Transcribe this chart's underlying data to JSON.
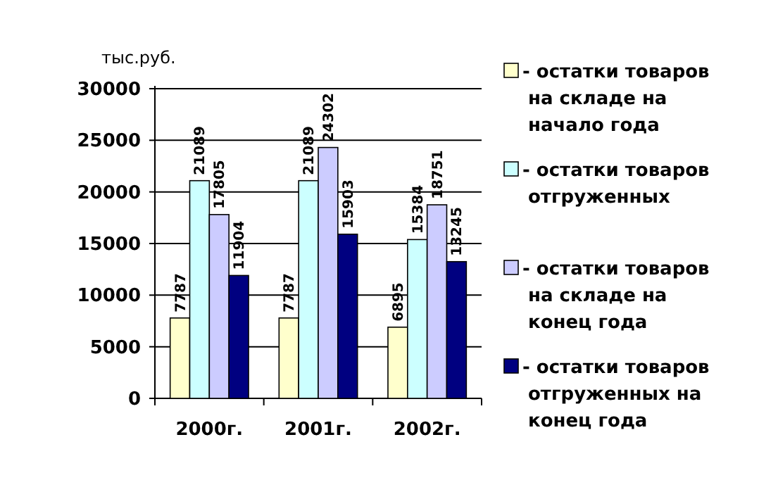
{
  "chart_data": {
    "type": "bar",
    "ylabel": "тыс.руб.",
    "categories": [
      "2000г.",
      "2001г.",
      "2002г."
    ],
    "series": [
      {
        "name": "- остатки товаров на складе на начало года",
        "color": "#ffffcc",
        "values": [
          7787,
          7787,
          6895
        ]
      },
      {
        "name": "- остатки товаров отгруженных",
        "color": "#ccffff",
        "values": [
          21089,
          21089,
          15384
        ]
      },
      {
        "name": "- остатки товаров на складе на конец года",
        "color": "#ccccff",
        "values": [
          17805,
          24302,
          18751
        ]
      },
      {
        "name": "- остатки товаров отгруженных на конец года",
        "color": "#000080",
        "values": [
          11904,
          15903,
          13245
        ]
      }
    ],
    "ylim": [
      0,
      30000
    ],
    "yticks": [
      0,
      5000,
      10000,
      15000,
      20000,
      25000,
      30000
    ],
    "grid": "y",
    "legend": "right",
    "data_labels": true
  }
}
